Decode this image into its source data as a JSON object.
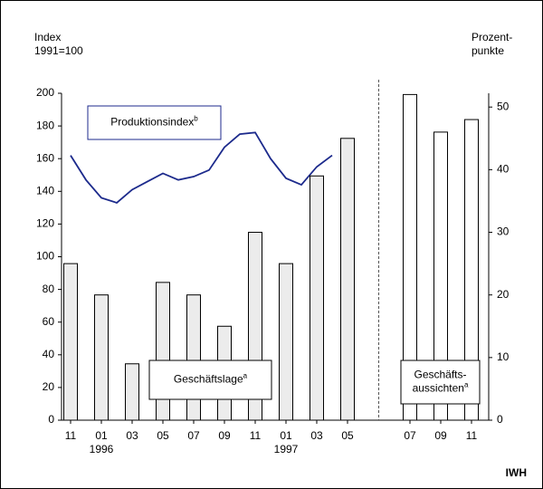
{
  "chart_data": {
    "type": "bar",
    "y_title": [
      "Index",
      "1991=100"
    ],
    "y2_title": [
      "Prozent-",
      "punkte"
    ],
    "source": "IWH",
    "categories": [
      "11",
      null,
      "01",
      null,
      "03",
      null,
      "05",
      null,
      "07",
      null,
      "09",
      null,
      "11",
      null,
      "01",
      null,
      "03",
      null,
      "05",
      null,
      "07",
      null,
      "09",
      null,
      "11"
    ],
    "years": [
      "1996",
      "1997"
    ],
    "ylim": [
      0,
      200
    ],
    "yticks": [
      0,
      20,
      40,
      60,
      80,
      100,
      120,
      140,
      160,
      180,
      200
    ],
    "y2lim": [
      0,
      52.2
    ],
    "y2ticks": [
      0,
      10,
      20,
      30,
      40,
      50
    ],
    "series": [
      {
        "name": [
          "Produktionsindex"
        ],
        "note": "b",
        "type": "line",
        "color": "#1c2a8c",
        "values": [
          162,
          147,
          136,
          133,
          141,
          146,
          151,
          147,
          149,
          153,
          167,
          175,
          176,
          160,
          148,
          144,
          155,
          162,
          null,
          null,
          null,
          null,
          null,
          null,
          null
        ]
      },
      {
        "name": [
          "Geschäftslage"
        ],
        "note": "a",
        "axis": "y2",
        "color": "#ececec",
        "values": [
          25,
          null,
          20,
          null,
          9,
          null,
          22,
          null,
          20,
          null,
          15,
          null,
          30,
          null,
          25,
          null,
          39,
          null,
          45,
          null,
          null,
          null,
          null,
          null,
          null
        ]
      },
      {
        "name": [
          "Geschäfts-",
          "aussichten"
        ],
        "note": "a",
        "axis": "y2",
        "color": "#ffffff",
        "values": [
          null,
          null,
          null,
          null,
          null,
          null,
          null,
          null,
          null,
          null,
          null,
          null,
          null,
          null,
          null,
          null,
          null,
          null,
          null,
          null,
          52,
          null,
          46,
          null,
          48
        ]
      }
    ]
  }
}
